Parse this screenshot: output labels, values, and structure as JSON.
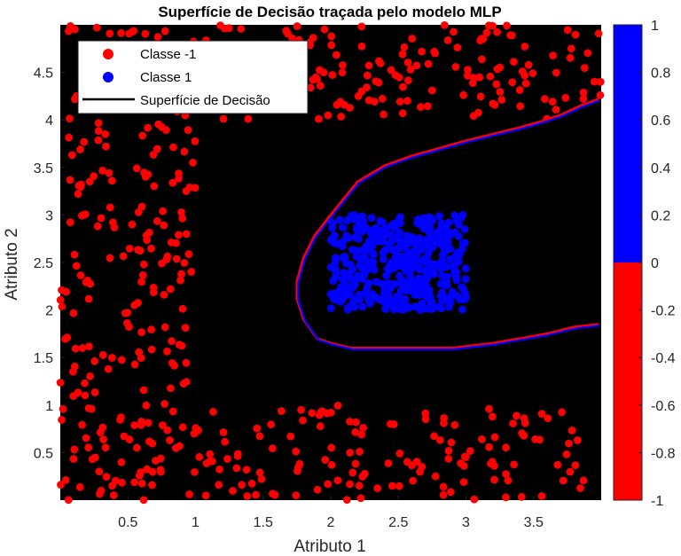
{
  "chart_data": {
    "type": "scatter",
    "title": "Superfície de Decisão traçada pelo modelo MLP",
    "xlabel": "Atributo 1",
    "ylabel": "Atributo 2",
    "xlim": [
      0,
      4
    ],
    "ylim": [
      0,
      5
    ],
    "xticks": [
      0.5,
      1,
      1.5,
      2,
      2.5,
      3,
      3.5
    ],
    "yticks": [
      0.5,
      1,
      1.5,
      2,
      2.5,
      3,
      3.5,
      4,
      4.5
    ],
    "background_color": "#000000",
    "legend_placement": "top-left",
    "legend": [
      {
        "label": "Classe -1",
        "marker": "circle",
        "color": "#ff0000"
      },
      {
        "label": "Classe 1",
        "marker": "circle",
        "color": "#0000ff"
      },
      {
        "label": "Superfície de Decisão",
        "marker": "line",
        "color": "#000000"
      }
    ],
    "series": [
      {
        "name": "Classe -1",
        "color": "#ff0000",
        "description_regions": [
          {
            "x": [
              0.0,
              1.0
            ],
            "y": [
              0.0,
              5.0
            ],
            "n": 250
          },
          {
            "x": [
              1.0,
              4.0
            ],
            "y": [
              0.0,
              1.0
            ],
            "n": 140
          },
          {
            "x": [
              1.0,
              4.0
            ],
            "y": [
              4.0,
              5.0
            ],
            "n": 170
          }
        ]
      },
      {
        "name": "Classe 1",
        "color": "#0000ff",
        "description_regions": [
          {
            "x": [
              2.0,
              3.0
            ],
            "y": [
              2.0,
              3.0
            ],
            "n": 420
          }
        ]
      }
    ],
    "decision_boundary": {
      "name": "Superfície de Decisão",
      "points": [
        [
          3.98,
          4.22
        ],
        [
          3.85,
          4.15
        ],
        [
          3.7,
          4.05
        ],
        [
          3.55,
          3.98
        ],
        [
          3.4,
          3.92
        ],
        [
          3.2,
          3.85
        ],
        [
          3.0,
          3.78
        ],
        [
          2.8,
          3.7
        ],
        [
          2.6,
          3.62
        ],
        [
          2.4,
          3.52
        ],
        [
          2.2,
          3.35
        ],
        [
          2.0,
          3.0
        ],
        [
          1.88,
          2.78
        ],
        [
          1.8,
          2.55
        ],
        [
          1.75,
          2.3
        ],
        [
          1.75,
          2.12
        ],
        [
          1.8,
          1.9
        ],
        [
          1.9,
          1.7
        ],
        [
          2.0,
          1.65
        ],
        [
          2.15,
          1.6
        ],
        [
          2.5,
          1.6
        ],
        [
          2.9,
          1.6
        ],
        [
          3.2,
          1.65
        ],
        [
          3.4,
          1.7
        ],
        [
          3.6,
          1.75
        ],
        [
          3.8,
          1.82
        ],
        [
          3.98,
          1.85
        ]
      ]
    },
    "colorbar": {
      "limits": [
        -1,
        1
      ],
      "ticks": [
        -1,
        -0.8,
        -0.6,
        -0.4,
        -0.2,
        0,
        0.2,
        0.4,
        0.6,
        0.8,
        1
      ],
      "tick_labels": [
        "-1",
        "-0.8",
        "-0.6",
        "-0.4",
        "-0.2",
        "0",
        "0.2",
        "0.4",
        "0.6",
        "0.8",
        "1"
      ],
      "colors": [
        {
          "from": -1,
          "to": 0,
          "color": "#ff0000"
        },
        {
          "from": 0,
          "to": 1,
          "color": "#0000ff"
        }
      ]
    }
  }
}
